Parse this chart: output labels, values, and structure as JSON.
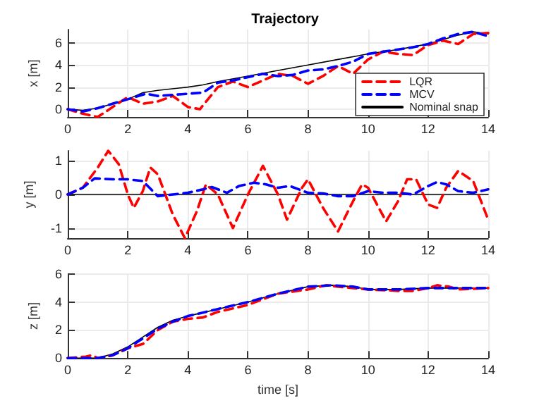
{
  "chart_data": [
    {
      "type": "line",
      "title": "Trajectory",
      "ylabel": "x [m]",
      "xlim": [
        0,
        14
      ],
      "xticks": [
        0,
        2,
        4,
        6,
        8,
        10,
        12,
        14
      ],
      "ylim": [
        -0.7,
        7.2
      ],
      "yticks": [
        0,
        2,
        4,
        6
      ],
      "grid": true,
      "legend": "bottom right",
      "marker": "none",
      "series": [
        {
          "name": "LQR",
          "color": "#ff0000",
          "line_style": "dashed",
          "x": [
            0,
            0.5,
            1,
            1.5,
            2,
            2.5,
            3,
            3.5,
            4,
            4.4,
            5,
            5.5,
            6,
            6.5,
            7,
            7.5,
            8,
            8.5,
            9,
            9.5,
            10,
            10.5,
            11,
            11.5,
            12,
            12.5,
            13,
            13.5,
            14
          ],
          "values": [
            0,
            -0.4,
            -0.7,
            0.2,
            1.1,
            0.5,
            0.7,
            1.2,
            0.2,
            0.0,
            2.0,
            2.5,
            2.0,
            2.6,
            3.2,
            3.0,
            2.3,
            3.0,
            3.9,
            3.2,
            4.5,
            5.2,
            5.0,
            4.9,
            5.8,
            6.2,
            5.9,
            6.8,
            6.9
          ]
        },
        {
          "name": "MCV",
          "color": "#0000ff",
          "line_style": "dashed",
          "x": [
            0,
            0.5,
            1,
            2,
            2.6,
            3,
            3.5,
            4,
            4.5,
            5,
            5.5,
            6,
            6.5,
            7,
            7.5,
            8,
            8.5,
            9,
            9.5,
            10,
            10.5,
            11,
            11.5,
            12,
            12.5,
            13,
            13.5,
            14
          ],
          "values": [
            0,
            -0.2,
            0.1,
            0.9,
            1.4,
            1.2,
            1.3,
            1.4,
            1.5,
            2.4,
            2.6,
            2.9,
            3.2,
            3.0,
            3.1,
            3.5,
            3.6,
            3.9,
            4.3,
            5.0,
            5.2,
            5.4,
            5.6,
            5.9,
            6.4,
            6.8,
            7.0,
            6.6
          ]
        },
        {
          "name": "Nominal snap",
          "color": "#000000",
          "line_style": "solid",
          "x": [
            0,
            0.5,
            1,
            2,
            2.5,
            3,
            4,
            4.5,
            5,
            6,
            7,
            8,
            9,
            10,
            11,
            12,
            13,
            13.5,
            14
          ],
          "values": [
            0,
            -0.1,
            0.1,
            0.9,
            1.5,
            1.7,
            2.0,
            2.2,
            2.5,
            3.0,
            3.5,
            4.0,
            4.5,
            5.0,
            5.4,
            5.9,
            6.7,
            7.0,
            6.8
          ]
        }
      ]
    },
    {
      "type": "line",
      "ylabel": "y [m]",
      "xlim": [
        0,
        14
      ],
      "xticks": [
        0,
        2,
        4,
        6,
        8,
        10,
        12,
        14
      ],
      "ylim": [
        -1.3,
        1.3
      ],
      "yticks": [
        -1,
        0,
        1
      ],
      "grid": true,
      "marker": "none",
      "series": [
        {
          "color": "#000000",
          "line_style": "solid",
          "x": [
            0,
            14
          ],
          "values": [
            0,
            0
          ]
        },
        {
          "color": "#ff0000",
          "line_style": "dashed",
          "x": [
            0,
            0.5,
            1,
            1.35,
            1.7,
            2,
            2.2,
            2.5,
            2.75,
            3,
            3.5,
            3.9,
            4.3,
            4.6,
            5,
            5.5,
            6,
            6.5,
            7,
            7.3,
            7.8,
            8,
            8.5,
            9,
            9.5,
            9.8,
            10,
            10.6,
            11,
            11.3,
            11.6,
            12,
            12.3,
            12.6,
            13,
            13.5,
            14
          ],
          "values": [
            0,
            0.2,
            0.8,
            1.3,
            0.9,
            0.0,
            -0.4,
            0.1,
            0.8,
            0.6,
            -0.6,
            -1.3,
            -0.5,
            0.3,
            0.0,
            -1.0,
            0.0,
            0.85,
            0.0,
            -0.75,
            0.2,
            0.45,
            -0.4,
            -1.1,
            -0.2,
            0.3,
            0.2,
            -0.8,
            -0.2,
            0.45,
            0.45,
            -0.3,
            -0.4,
            0.2,
            0.7,
            0.4,
            -0.75
          ]
        },
        {
          "color": "#0000ff",
          "line_style": "dashed",
          "x": [
            0,
            0.5,
            0.9,
            1.5,
            2,
            2.5,
            3,
            3.5,
            4,
            4.5,
            4.8,
            5.3,
            5.7,
            6.2,
            6.6,
            7,
            7.4,
            8,
            8.5,
            9,
            9.5,
            10,
            10.5,
            11,
            11.5,
            12,
            12.3,
            12.6,
            13,
            13.5,
            14
          ],
          "values": [
            0,
            0.2,
            0.48,
            0.45,
            0.45,
            0.4,
            -0.05,
            0,
            0.05,
            0.15,
            0.22,
            0.05,
            0.25,
            0.35,
            0.3,
            0.2,
            0.25,
            0.05,
            0.03,
            -0.05,
            -0.05,
            0.1,
            0.05,
            0.05,
            0.0,
            0.25,
            0.37,
            0.3,
            0.1,
            0.05,
            0.15
          ]
        }
      ]
    },
    {
      "type": "line",
      "xlabel": "time [s]",
      "ylabel": "z [m]",
      "xlim": [
        0,
        14
      ],
      "xticks": [
        0,
        2,
        4,
        6,
        8,
        10,
        12,
        14
      ],
      "ylim": [
        0,
        6
      ],
      "yticks": [
        0,
        2,
        4,
        6
      ],
      "grid": true,
      "marker": "none",
      "series": [
        {
          "color": "#000000",
          "line_style": "solid",
          "x": [
            0,
            1,
            1.5,
            2,
            2.5,
            3,
            3.5,
            4,
            5,
            6,
            7,
            8,
            8.8,
            9.5,
            10,
            11,
            12,
            13,
            14
          ],
          "values": [
            0,
            0,
            0.3,
            0.8,
            1.5,
            2.2,
            2.7,
            3.0,
            3.5,
            4.0,
            4.6,
            5.1,
            5.2,
            5.1,
            4.9,
            4.9,
            5.0,
            5.0,
            5.0
          ]
        },
        {
          "color": "#ff0000",
          "line_style": "dashed",
          "x": [
            0,
            0.6,
            0.8,
            1,
            1.5,
            2,
            2.5,
            3,
            3.5,
            4,
            4.5,
            5,
            6,
            6.5,
            7,
            8,
            8.6,
            9,
            9.5,
            10,
            11,
            11.5,
            12,
            12.3,
            12.7,
            13,
            14
          ],
          "values": [
            0,
            0.1,
            0.2,
            0,
            0.2,
            0.7,
            1.0,
            2.0,
            2.6,
            2.8,
            2.9,
            3.3,
            3.8,
            4.2,
            4.6,
            4.9,
            5.2,
            5.1,
            5.0,
            4.9,
            4.8,
            4.8,
            5.0,
            5.2,
            5.1,
            4.9,
            5.0
          ]
        },
        {
          "color": "#0000ff",
          "line_style": "dashed",
          "x": [
            0,
            1,
            1.5,
            2,
            2.5,
            3,
            3.5,
            4,
            5,
            6,
            7,
            8,
            8.8,
            9.5,
            10,
            11,
            12,
            13,
            14
          ],
          "values": [
            0,
            0,
            0.2,
            0.7,
            1.4,
            2.1,
            2.6,
            3.0,
            3.5,
            4.0,
            4.6,
            5.1,
            5.2,
            5.1,
            4.9,
            4.9,
            5.0,
            5.0,
            5.0
          ]
        }
      ]
    }
  ]
}
